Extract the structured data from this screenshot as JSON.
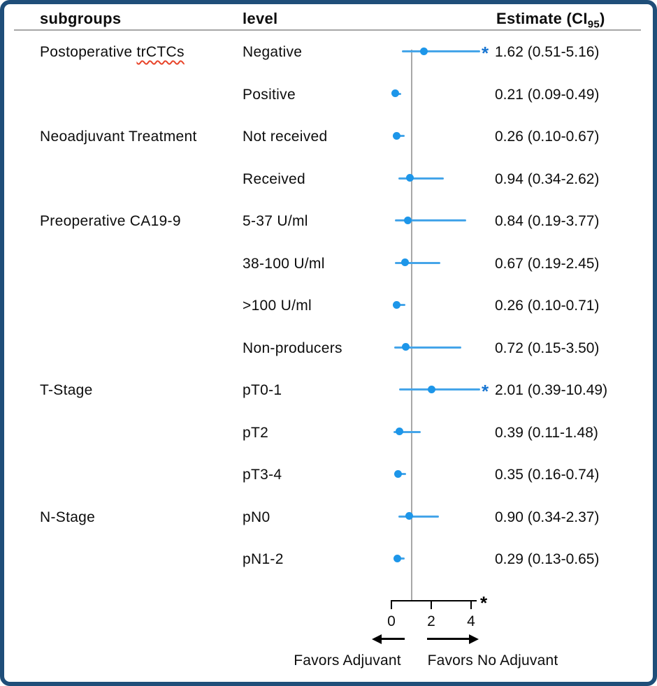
{
  "header": {
    "subgroups": "subgroups",
    "level": "level",
    "estimate_prefix": "Estimate (CI",
    "estimate_sub": "95",
    "estimate_suffix": ")"
  },
  "chart_data": {
    "type": "forest",
    "xlabel": "",
    "ylabel": "",
    "xlim": [
      0,
      4.45
    ],
    "reference_line": 1,
    "axis_ticks": [
      "0",
      "2",
      "4"
    ],
    "axis_tick_values": [
      0,
      2,
      4
    ],
    "truncation_marker": "*",
    "favors_left": "Favors Adjuvant",
    "favors_right": "Favors No Adjuvant",
    "colors": {
      "marker": "#1d96e9",
      "ci_line": "#45a5e9",
      "truncation_asterisk": "#1976d2",
      "reference_line": "#a8a8a8",
      "axis": "#000000",
      "frame_border": "#1f4e79"
    },
    "rows": [
      {
        "subgroup": "Postoperative trCTCs",
        "misspelled_word": "trCTCs",
        "level": "Negative",
        "estimate": 1.62,
        "ci_low": 0.51,
        "ci_high": 5.16,
        "estimate_label": "1.62 (0.51-5.16)",
        "flagged": true
      },
      {
        "subgroup": "",
        "level": "Positive",
        "estimate": 0.21,
        "ci_low": 0.09,
        "ci_high": 0.49,
        "estimate_label": "0.21 (0.09-0.49)",
        "flagged": false
      },
      {
        "subgroup": "Neoadjuvant Treatment",
        "level": "Not received",
        "estimate": 0.26,
        "ci_low": 0.1,
        "ci_high": 0.67,
        "estimate_label": "0.26 (0.10-0.67)",
        "flagged": false
      },
      {
        "subgroup": "",
        "level": "Received",
        "estimate": 0.94,
        "ci_low": 0.34,
        "ci_high": 2.62,
        "estimate_label": "0.94 (0.34-2.62)",
        "flagged": false
      },
      {
        "subgroup": "Preoperative CA19-9",
        "level": "5-37 U/ml",
        "estimate": 0.84,
        "ci_low": 0.19,
        "ci_high": 3.77,
        "estimate_label": "0.84 (0.19-3.77)",
        "flagged": false
      },
      {
        "subgroup": "",
        "level": "38-100 U/ml",
        "estimate": 0.67,
        "ci_low": 0.19,
        "ci_high": 2.45,
        "estimate_label": "0.67 (0.19-2.45)",
        "flagged": false
      },
      {
        "subgroup": "",
        "level": ">100 U/ml",
        "estimate": 0.26,
        "ci_low": 0.1,
        "ci_high": 0.71,
        "estimate_label": "0.26 (0.10-0.71)",
        "flagged": false
      },
      {
        "subgroup": "",
        "level": "Non-producers",
        "estimate": 0.72,
        "ci_low": 0.15,
        "ci_high": 3.5,
        "estimate_label": "0.72 (0.15-3.50)",
        "flagged": false
      },
      {
        "subgroup": "T-Stage",
        "level": "pT0-1",
        "estimate": 2.01,
        "ci_low": 0.39,
        "ci_high": 10.49,
        "estimate_label": "2.01 (0.39-10.49)",
        "flagged": true
      },
      {
        "subgroup": "",
        "level": "pT2",
        "estimate": 0.39,
        "ci_low": 0.11,
        "ci_high": 1.48,
        "estimate_label": "0.39 (0.11-1.48)",
        "flagged": false
      },
      {
        "subgroup": "",
        "level": "pT3-4",
        "estimate": 0.35,
        "ci_low": 0.16,
        "ci_high": 0.74,
        "estimate_label": "0.35 (0.16-0.74)",
        "flagged": false
      },
      {
        "subgroup": "N-Stage",
        "level": "pN0",
        "estimate": 0.9,
        "ci_low": 0.34,
        "ci_high": 2.37,
        "estimate_label": "0.90 (0.34-2.37)",
        "flagged": false
      },
      {
        "subgroup": "",
        "level": "pN1-2",
        "estimate": 0.29,
        "ci_low": 0.13,
        "ci_high": 0.65,
        "estimate_label": "0.29 (0.13-0.65)",
        "flagged": false
      }
    ]
  }
}
